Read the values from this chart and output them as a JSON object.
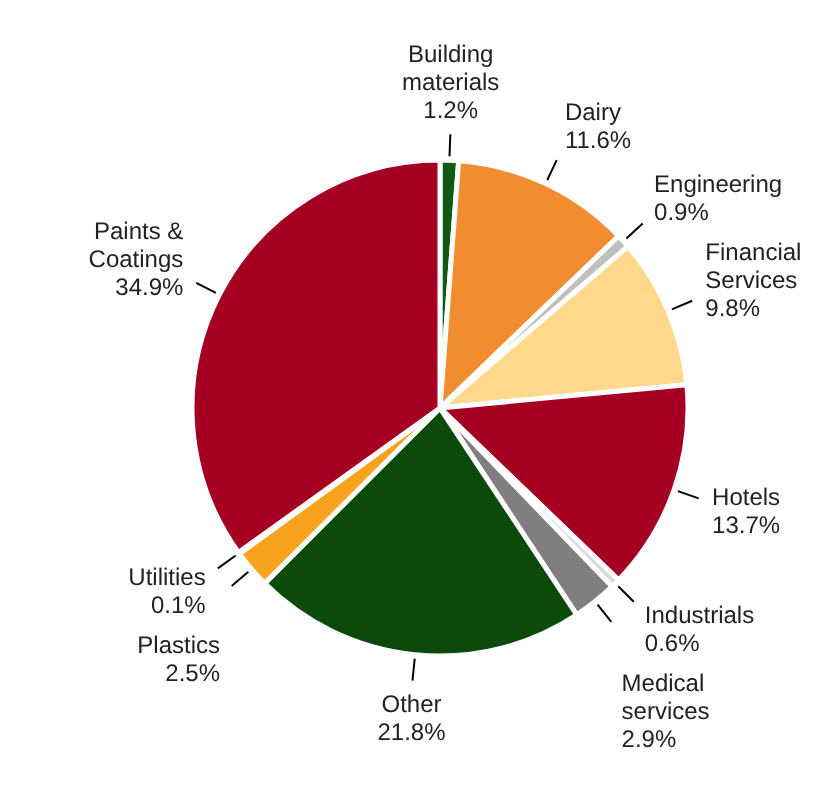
{
  "chart_data": {
    "type": "pie",
    "categories": [
      "Building materials",
      "Dairy",
      "Engineering",
      "Financial Services",
      "Hotels",
      "Industrials",
      "Medical services",
      "Other",
      "Plastics",
      "Utilities",
      "Paints & Coatings"
    ],
    "values": [
      1.2,
      11.6,
      0.9,
      9.8,
      13.7,
      0.6,
      2.9,
      21.8,
      2.5,
      0.1,
      34.9
    ],
    "colors": [
      "#0f5a14",
      "#f28c30",
      "#bfbfbf",
      "#ffd88c",
      "#a50021",
      "#d9d9d9",
      "#7f7f7f",
      "#0c4a0c",
      "#f7a21c",
      "#a50021",
      "#a50021"
    ],
    "value_labels": [
      "1.2%",
      "11.6%",
      "0.9%",
      "9.8%",
      "13.7%",
      "0.6%",
      "2.9%",
      "21.8%",
      "2.5%",
      "0.1%",
      "34.9%"
    ]
  }
}
